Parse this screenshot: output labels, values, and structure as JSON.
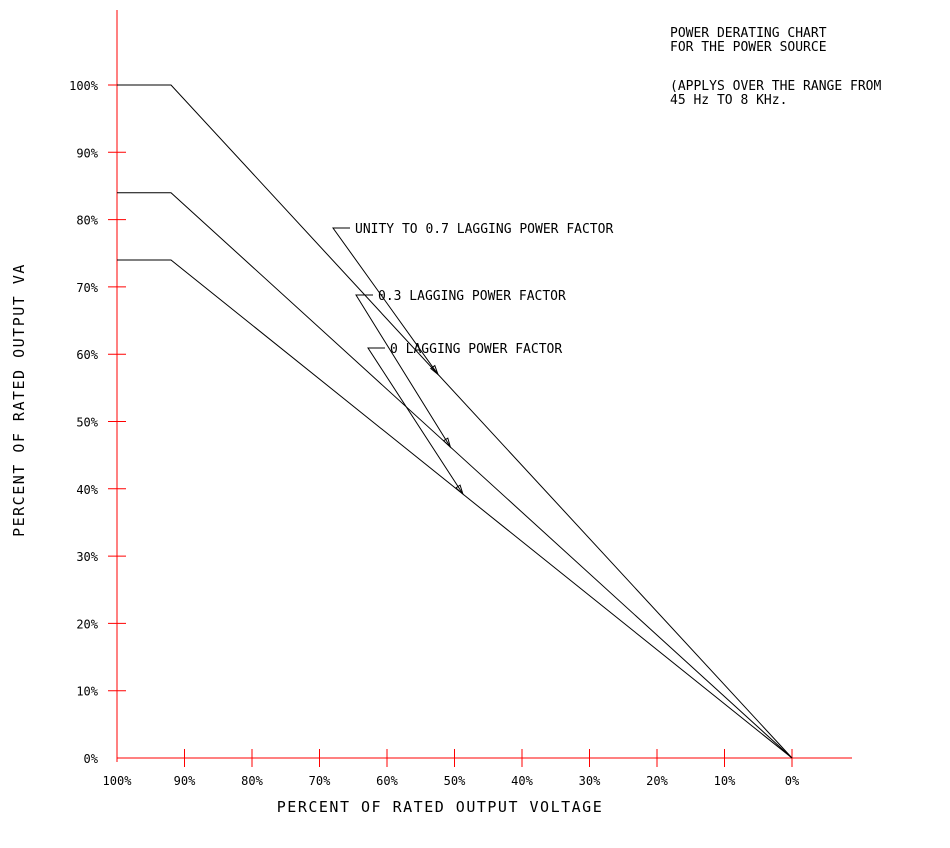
{
  "colors": {
    "axis": "#ff0000",
    "curve": "#000000",
    "background": "#ffffff"
  },
  "notes": {
    "line1": "POWER DERATING CHART",
    "line2": "FOR THE POWER SOURCE",
    "line3": "(APPLYS OVER THE RANGE FROM",
    "line4": "45 Hz TO 8 KHz."
  },
  "chart_data": {
    "type": "line",
    "xlabel": "PERCENT OF RATED OUTPUT VOLTAGE",
    "ylabel": "PERCENT OF RATED OUTPUT VA",
    "x_reversed": true,
    "xlim": [
      100,
      0
    ],
    "ylim": [
      0,
      100
    ],
    "x_ticks": [
      "100%",
      "90%",
      "80%",
      "70%",
      "60%",
      "50%",
      "40%",
      "30%",
      "20%",
      "10%",
      "0%"
    ],
    "y_ticks": [
      "0%",
      "10%",
      "20%",
      "30%",
      "40%",
      "50%",
      "60%",
      "70%",
      "80%",
      "90%",
      "100%"
    ],
    "grid": false,
    "series": [
      {
        "name": "UNITY TO 0.7 LAGGING POWER FACTOR",
        "x": [
          100,
          92,
          0
        ],
        "y": [
          100,
          100,
          0
        ]
      },
      {
        "name": "0.3 LAGGING POWER FACTOR",
        "x": [
          100,
          92,
          0
        ],
        "y": [
          84,
          84,
          0
        ]
      },
      {
        "name": "0 LAGGING POWER FACTOR",
        "x": [
          100,
          92,
          0
        ],
        "y": [
          74,
          74,
          0
        ]
      }
    ]
  }
}
